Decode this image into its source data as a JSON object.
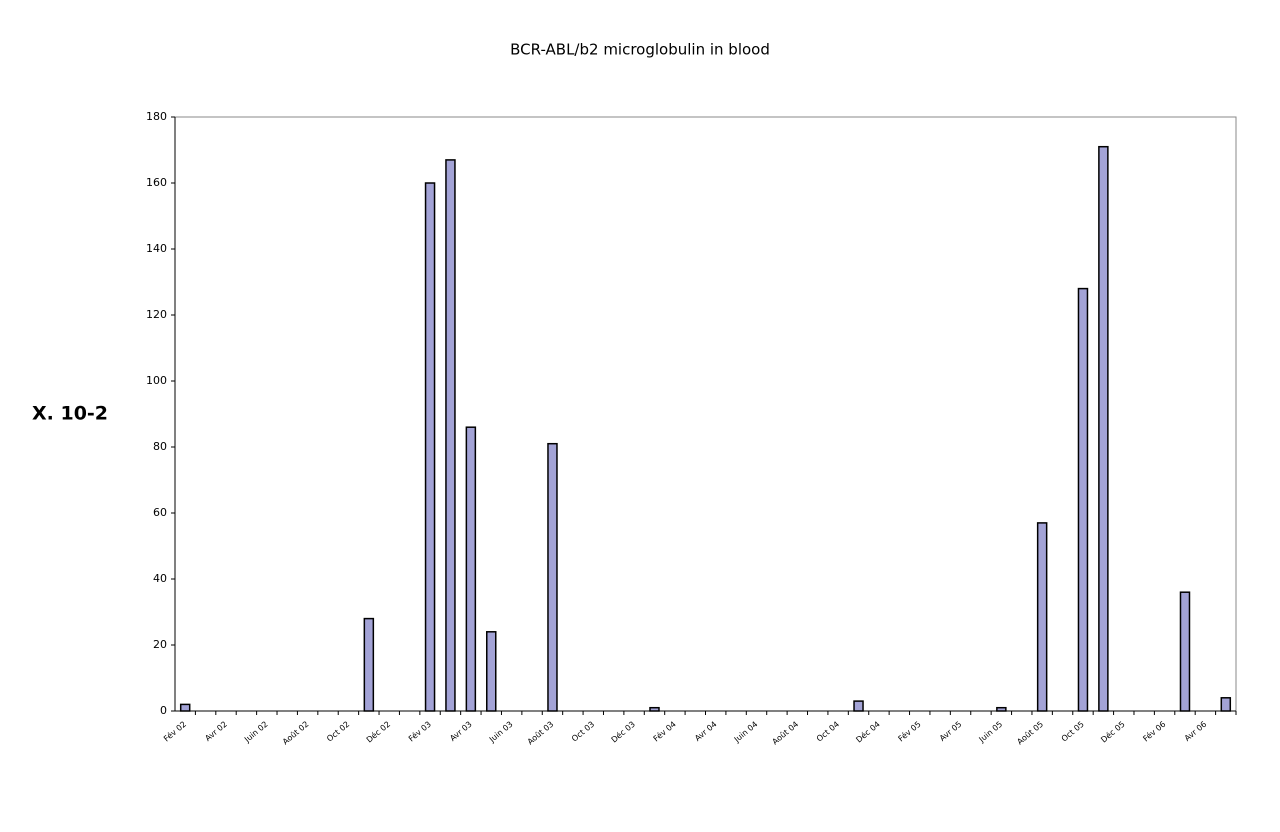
{
  "chart_data": {
    "type": "bar",
    "title": "BCR-ABL/b2 microglobulin in blood",
    "y_label": "X. 10-2",
    "categories": [
      "Fév 02",
      null,
      "Avr 02",
      null,
      "Juin 02",
      null,
      "Août 02",
      null,
      "Oct 02",
      null,
      "Déc 02",
      null,
      "Fév 03",
      null,
      "Avr 03",
      null,
      "Juin 03",
      null,
      "Août 03",
      null,
      "Oct 03",
      null,
      "Déc 03",
      null,
      "Fév 04",
      null,
      "Avr 04",
      null,
      "Juin 04",
      null,
      "Août 04",
      null,
      "Oct 04",
      null,
      "Déc 04",
      null,
      "Fév 05",
      null,
      "Avr 05",
      null,
      "Juin 05",
      null,
      "Août 05",
      null,
      "Oct 05",
      null,
      "Déc 05",
      null,
      "Fév 06",
      null,
      "Avr 06",
      null
    ],
    "values": [
      2,
      null,
      null,
      null,
      null,
      null,
      null,
      null,
      null,
      28,
      null,
      null,
      160,
      167,
      86,
      24,
      null,
      null,
      81,
      null,
      null,
      null,
      null,
      1,
      null,
      null,
      null,
      null,
      null,
      null,
      null,
      null,
      null,
      3,
      null,
      null,
      null,
      null,
      null,
      null,
      1,
      null,
      57,
      null,
      128,
      171,
      null,
      null,
      null,
      36,
      null,
      4
    ],
    "color": "#a3a3d6",
    "ylim": [
      0,
      180
    ],
    "yticks": [
      0,
      20,
      40,
      60,
      80,
      100,
      120,
      140,
      160,
      180
    ],
    "grid": false
  }
}
